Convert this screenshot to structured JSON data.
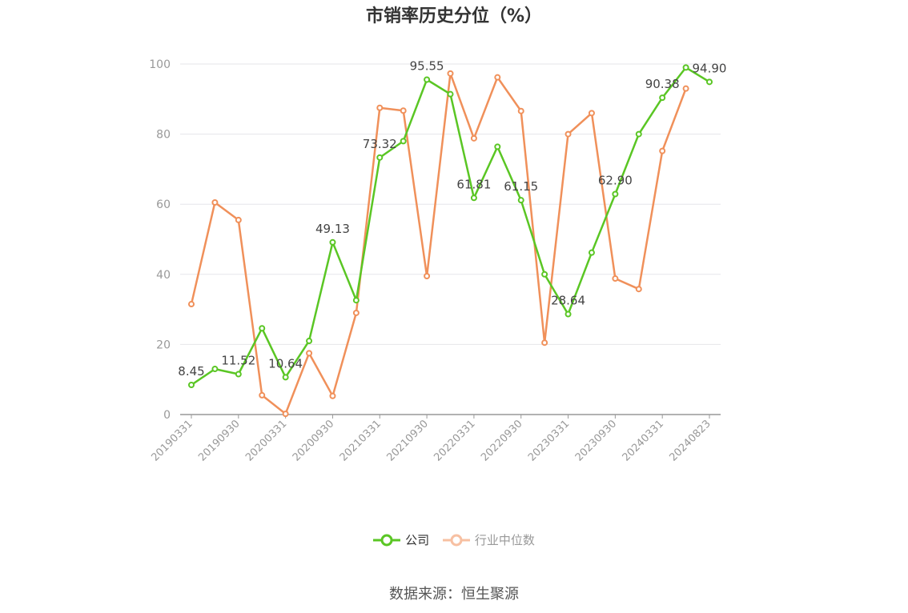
{
  "chart_data": {
    "type": "line",
    "title": "市销率历史分位（%）",
    "ylim": [
      0,
      100
    ],
    "yticks": [
      0,
      20,
      40,
      60,
      80,
      100
    ],
    "xtick_labels": [
      "20190331",
      "20190930",
      "20200331",
      "20200930",
      "20210331",
      "20210930",
      "20220331",
      "20220930",
      "20230331",
      "20230930",
      "20240331",
      "20240823"
    ],
    "x": [
      "20190331",
      "20190630",
      "20190930",
      "20191231",
      "20200331",
      "20200630",
      "20200930",
      "20201231",
      "20210331",
      "20210630",
      "20210930",
      "20211231",
      "20220331",
      "20220630",
      "20220930",
      "20221231",
      "20230331",
      "20230630",
      "20230930",
      "20231231",
      "20240331",
      "20240630",
      "20240823"
    ],
    "series": [
      {
        "name": "公司",
        "color": "#5ac624",
        "values": [
          8.45,
          13.0,
          11.52,
          24.6,
          10.64,
          21.0,
          49.13,
          32.6,
          73.32,
          78.0,
          95.55,
          91.4,
          61.81,
          76.4,
          61.15,
          40.0,
          28.64,
          46.2,
          62.9,
          80.0,
          90.38,
          99.0,
          94.9
        ],
        "labels": [
          "8.45",
          "",
          "11.52",
          "",
          "10.64",
          "",
          "49.13",
          "",
          "73.32",
          "",
          "95.55",
          "",
          "61.81",
          "",
          "61.15",
          "",
          "28.64",
          "",
          "62.90",
          "",
          "90.38",
          "",
          "94.90"
        ]
      },
      {
        "name": "行业中位数",
        "color": "#f0905a",
        "values": [
          31.5,
          60.5,
          55.5,
          5.5,
          0.2,
          17.5,
          5.3,
          29.0,
          87.5,
          86.7,
          39.5,
          97.3,
          78.8,
          96.2,
          86.6,
          20.5,
          80.0,
          86.0,
          38.8,
          35.8,
          75.2,
          93.0,
          null
        ]
      }
    ],
    "legend": "bottom-center",
    "grid": true
  },
  "legend": {
    "company": "公司",
    "industry": "行业中位数"
  },
  "source": "数据来源：恒生聚源"
}
